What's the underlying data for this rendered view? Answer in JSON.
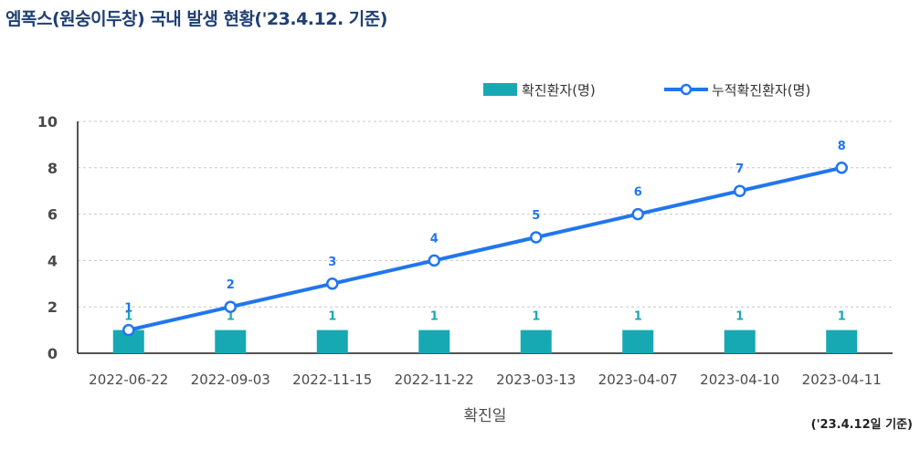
{
  "title": "엠폭스(원숭이두창) 국내 발생 현황('23.4.12. 기준)",
  "footnote": "('23.4.12일 기준)",
  "colors": {
    "bar": "#16a9b4",
    "line": "#2176ee",
    "axis": "#1a1a1a",
    "grid": "#c8c8c8",
    "tick": "#4a4a4a",
    "title": "#1f3f73"
  },
  "chart_data": {
    "type": "bar",
    "categories": [
      "2022-06-22",
      "2022-09-03",
      "2022-11-15",
      "2022-11-22",
      "2023-03-13",
      "2023-04-07",
      "2023-04-10",
      "2023-04-11"
    ],
    "series": [
      {
        "name": "확진환자(명)",
        "type": "bar",
        "values": [
          1,
          1,
          1,
          1,
          1,
          1,
          1,
          1
        ]
      },
      {
        "name": "누적확진환자(명)",
        "type": "line",
        "values": [
          1,
          2,
          3,
          4,
          5,
          6,
          7,
          8
        ]
      }
    ],
    "title": "엠폭스(원숭이두창) 국내 발생 현황('23.4.12. 기준)",
    "xlabel": "확진일",
    "ylabel": "",
    "ylim": [
      0,
      10
    ],
    "yticks": [
      0,
      2,
      4,
      6,
      8,
      10
    ],
    "grid": true,
    "legend_position": "top-right"
  }
}
